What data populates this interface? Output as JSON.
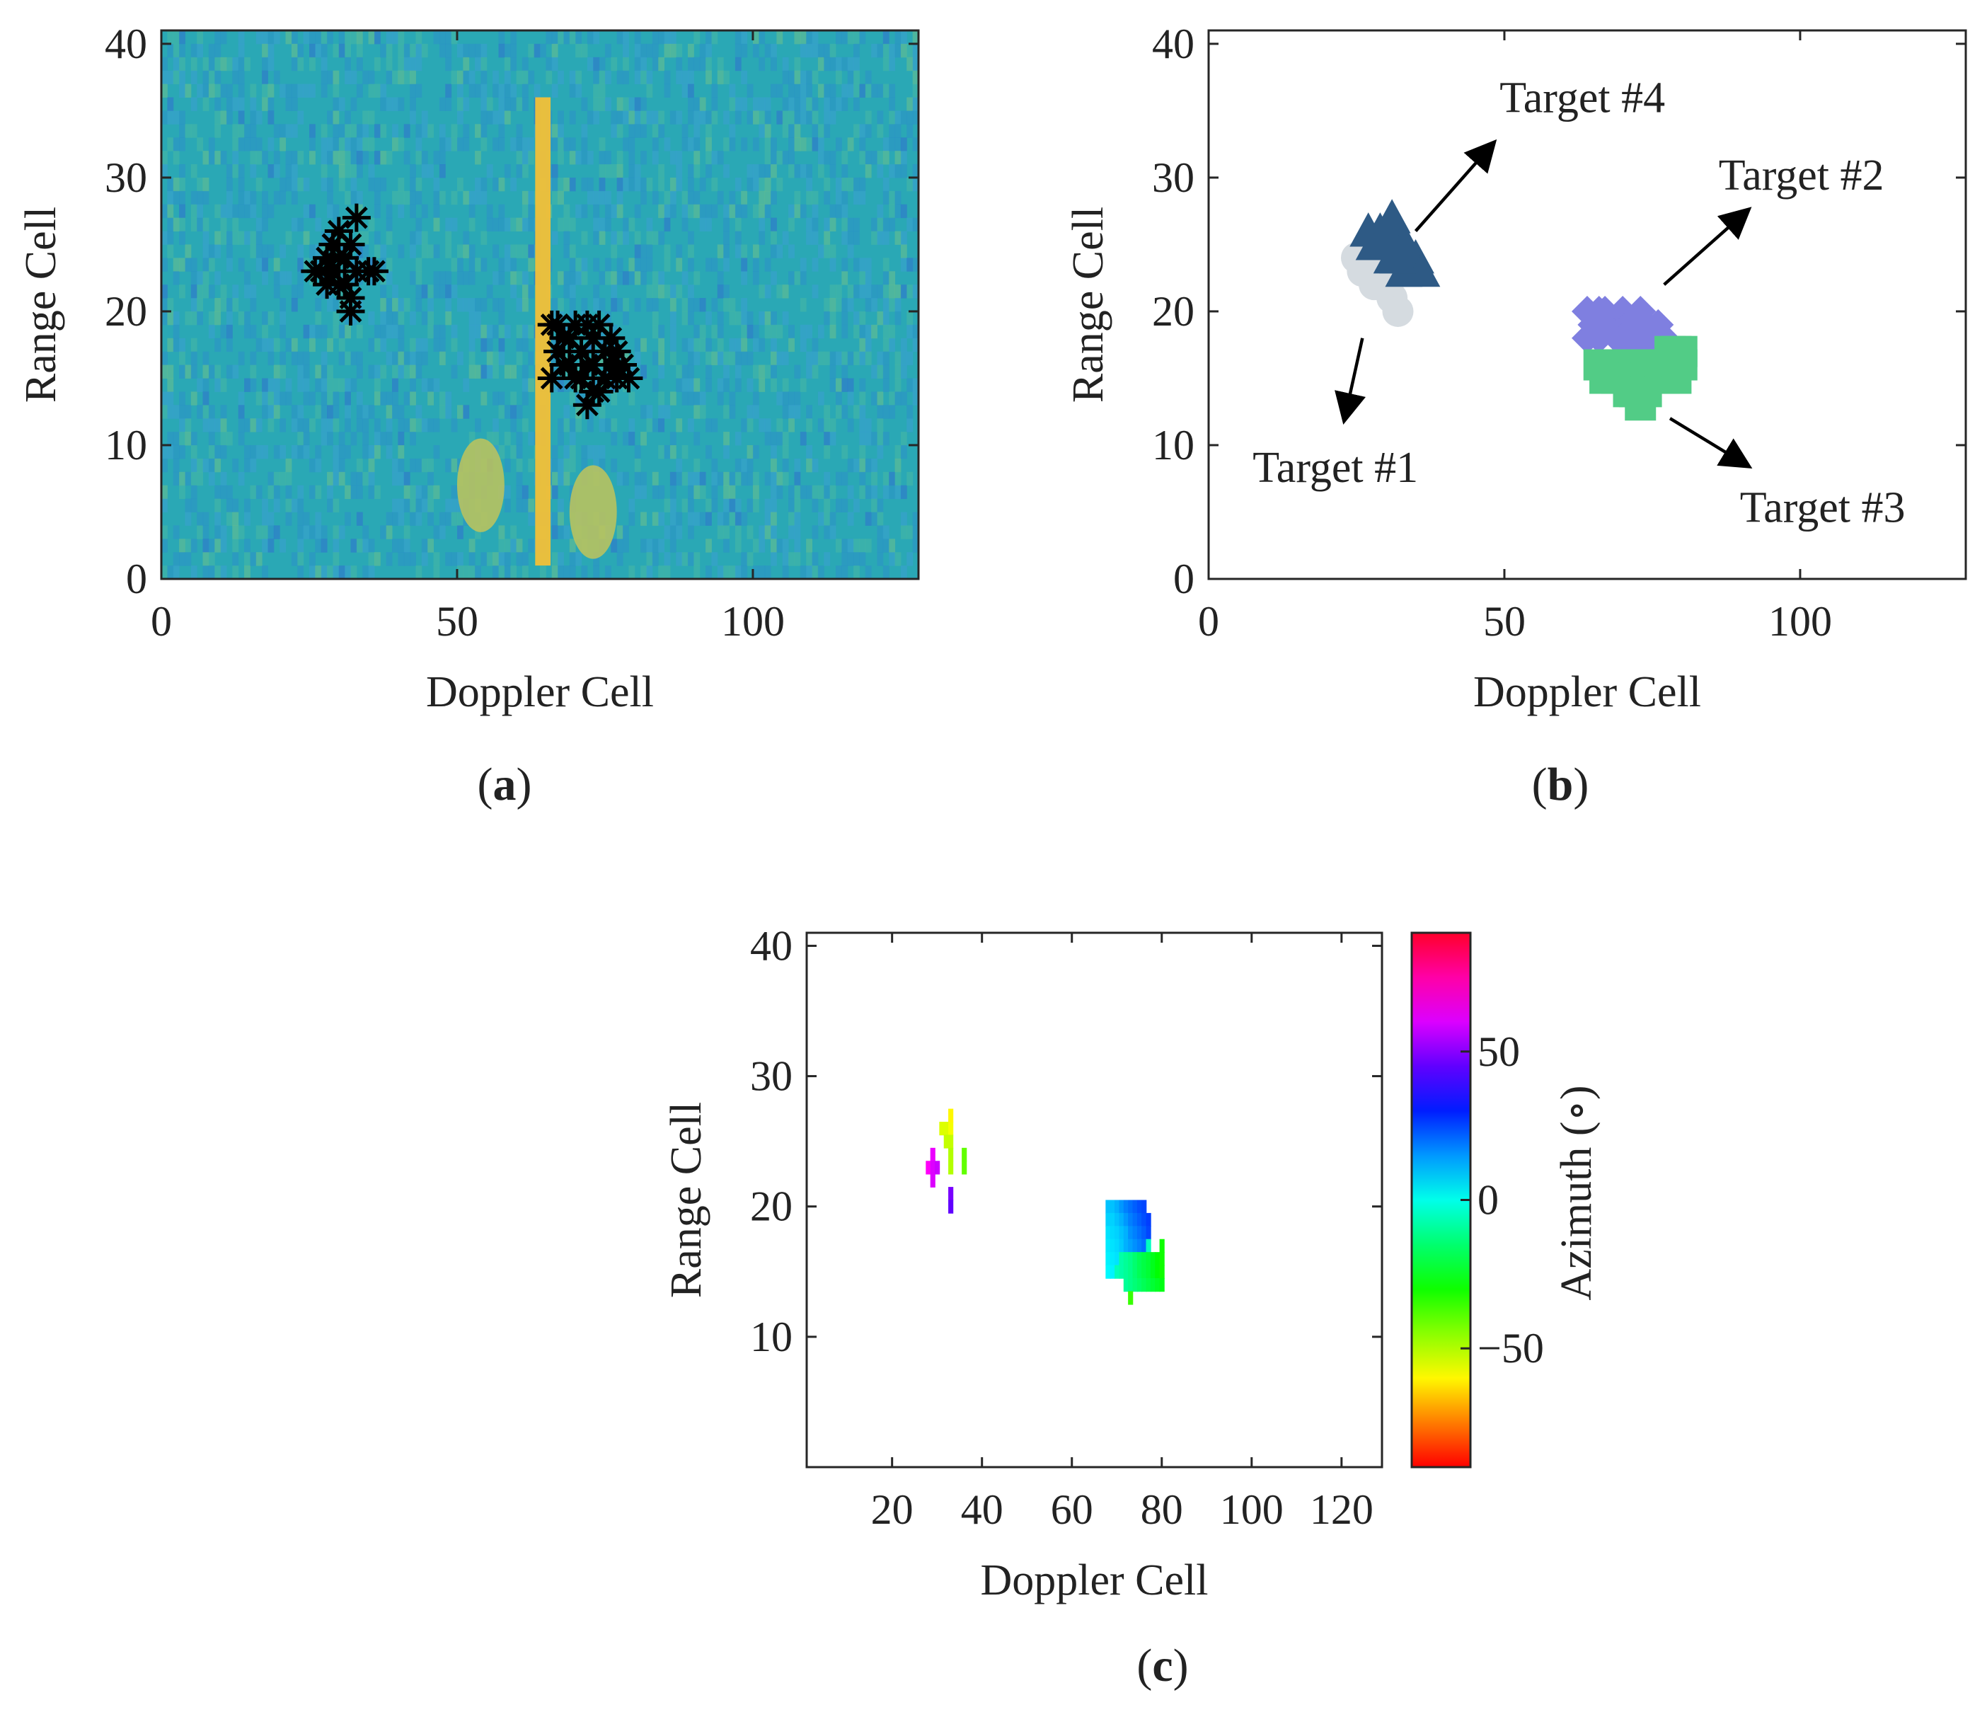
{
  "chart_data": [
    {
      "id": "a",
      "type": "heatmap",
      "caption_letter": "a",
      "xlabel": "Doppler Cell",
      "ylabel": "Range Cell",
      "xlim": [
        0,
        128
      ],
      "ylim": [
        0,
        41
      ],
      "xticks": [
        0,
        50,
        100
      ],
      "yticks": [
        0,
        10,
        20,
        30,
        40
      ],
      "background_color": "#2aa8b5",
      "stationary_line": {
        "x": 64.5,
        "y_range": [
          1,
          36
        ],
        "color": "#f2c038"
      },
      "hot_blobs": [
        {
          "x": 54,
          "y": 7,
          "color": "#bfc45a"
        },
        {
          "x": 73,
          "y": 5,
          "color": "#bfc45a"
        }
      ],
      "detections_marker": "*",
      "detections": [
        [
          27,
          23
        ],
        [
          28,
          24
        ],
        [
          29,
          25
        ],
        [
          30,
          26
        ],
        [
          31,
          24
        ],
        [
          32,
          25
        ],
        [
          33,
          27
        ],
        [
          30,
          22
        ],
        [
          28,
          22
        ],
        [
          26,
          23
        ],
        [
          29,
          23
        ],
        [
          31,
          22
        ],
        [
          32,
          21
        ],
        [
          32,
          20
        ],
        [
          35,
          23
        ],
        [
          36,
          23
        ],
        [
          33,
          23
        ],
        [
          30,
          24
        ],
        [
          66,
          19
        ],
        [
          67,
          17
        ],
        [
          66,
          15
        ],
        [
          68,
          16
        ],
        [
          69,
          18
        ],
        [
          70,
          19
        ],
        [
          71,
          17
        ],
        [
          72,
          16
        ],
        [
          73,
          18
        ],
        [
          74,
          19
        ],
        [
          75,
          17
        ],
        [
          76,
          16
        ],
        [
          77,
          15
        ],
        [
          78,
          16
        ],
        [
          79,
          15
        ],
        [
          72,
          13
        ],
        [
          73,
          14
        ],
        [
          71,
          15
        ],
        [
          74,
          14
        ],
        [
          75,
          15
        ],
        [
          70,
          15
        ],
        [
          69,
          16
        ],
        [
          68,
          18
        ],
        [
          67,
          19
        ],
        [
          76,
          18
        ],
        [
          77,
          17
        ],
        [
          73,
          16
        ],
        [
          72,
          19
        ]
      ]
    },
    {
      "id": "b",
      "type": "scatter",
      "caption_letter": "b",
      "xlabel": "Doppler Cell",
      "ylabel": "Range Cell",
      "xlim": [
        0,
        128
      ],
      "ylim": [
        0,
        41
      ],
      "xticks": [
        0,
        50,
        100
      ],
      "yticks": [
        0,
        10,
        20,
        30,
        40
      ],
      "series": [
        {
          "name": "Target #1",
          "marker": "circle",
          "color": "#d5dbe0",
          "points": [
            [
              25,
              24
            ],
            [
              26,
              23
            ],
            [
              27,
              24
            ],
            [
              28,
              22
            ],
            [
              29,
              23
            ],
            [
              30,
              22
            ],
            [
              31,
              21
            ],
            [
              32,
              20
            ],
            [
              29,
              25
            ],
            [
              31,
              23
            ]
          ]
        },
        {
          "name": "Target #4",
          "marker": "triangle",
          "color": "#2e5a85",
          "points": [
            [
              27,
              26
            ],
            [
              28,
              25
            ],
            [
              29,
              26
            ],
            [
              30,
              25
            ],
            [
              31,
              27
            ],
            [
              32,
              26
            ],
            [
              33,
              25
            ],
            [
              34,
              24
            ],
            [
              35,
              24
            ],
            [
              36,
              23
            ],
            [
              31,
              24
            ],
            [
              33,
              23
            ],
            [
              30,
              26
            ],
            [
              32,
              24
            ]
          ]
        },
        {
          "name": "Target #2",
          "marker": "diamond",
          "color": "#7f7fe0",
          "points": [
            [
              64,
              20
            ],
            [
              65,
              19
            ],
            [
              66,
              18
            ],
            [
              67,
              20
            ],
            [
              68,
              19
            ],
            [
              69,
              18
            ],
            [
              70,
              20
            ],
            [
              71,
              19
            ],
            [
              72,
              18
            ],
            [
              73,
              20
            ],
            [
              74,
              19
            ],
            [
              75,
              18
            ],
            [
              76,
              19
            ],
            [
              77,
              18
            ],
            [
              64,
              18
            ],
            [
              66,
              20
            ],
            [
              70,
              18
            ],
            [
              74,
              17
            ],
            [
              72,
              17
            ]
          ]
        },
        {
          "name": "Target #3",
          "marker": "square",
          "color": "#52cc86",
          "points": [
            [
              66,
              16
            ],
            [
              67,
              15
            ],
            [
              68,
              16
            ],
            [
              69,
              15
            ],
            [
              70,
              16
            ],
            [
              71,
              15
            ],
            [
              72,
              16
            ],
            [
              73,
              15
            ],
            [
              74,
              16
            ],
            [
              75,
              15
            ],
            [
              76,
              16
            ],
            [
              77,
              15
            ],
            [
              78,
              16
            ],
            [
              79,
              15
            ],
            [
              80,
              16
            ],
            [
              72,
              14
            ],
            [
              73,
              13
            ],
            [
              71,
              14
            ],
            [
              74,
              14
            ],
            [
              78,
              17
            ],
            [
              79,
              17
            ],
            [
              80,
              17
            ]
          ]
        }
      ],
      "annotations": [
        {
          "text": "Target #4",
          "from": [
            35,
            26
          ],
          "to": [
            48,
            32.5
          ]
        },
        {
          "text": "Target #2",
          "from": [
            77,
            22
          ],
          "to": [
            91,
            27.5
          ]
        },
        {
          "text": "Target #1",
          "from": [
            26,
            18
          ],
          "to": [
            23,
            12
          ]
        },
        {
          "text": "Target #3",
          "from": [
            78,
            12
          ],
          "to": [
            91,
            8.5
          ]
        }
      ]
    },
    {
      "id": "c",
      "type": "heatmap",
      "caption_letter": "c",
      "xlabel": "Doppler Cell",
      "ylabel": "Range Cell",
      "xlim": [
        1,
        129
      ],
      "ylim": [
        0,
        41
      ],
      "xticks": [
        20,
        40,
        60,
        80,
        100,
        120
      ],
      "yticks": [
        10,
        20,
        30,
        40
      ],
      "colorbar": {
        "label": "Azimuth (∘)",
        "range": [
          -90,
          90
        ],
        "ticks": [
          50,
          0,
          -50
        ],
        "tick_labels": [
          "50",
          "0",
          "−50"
        ],
        "colormap": "hsv"
      },
      "cells": [
        [
          31,
          26,
          -55
        ],
        [
          32,
          26,
          -55
        ],
        [
          33,
          26,
          -58
        ],
        [
          33,
          27,
          -60
        ],
        [
          32,
          25,
          -52
        ],
        [
          33,
          25,
          -52
        ],
        [
          33,
          24,
          -50
        ],
        [
          29,
          24,
          62
        ],
        [
          28,
          23,
          65
        ],
        [
          29,
          23,
          60
        ],
        [
          30,
          23,
          58
        ],
        [
          29,
          22,
          60
        ],
        [
          33,
          23,
          -50
        ],
        [
          33,
          21,
          48
        ],
        [
          33,
          20,
          45
        ],
        [
          36,
          24,
          -40
        ],
        [
          36,
          23,
          -40
        ],
        [
          68,
          20,
          10
        ],
        [
          69,
          20,
          10
        ],
        [
          70,
          20,
          12
        ],
        [
          71,
          20,
          15
        ],
        [
          72,
          20,
          18
        ],
        [
          73,
          20,
          20
        ],
        [
          74,
          20,
          22
        ],
        [
          75,
          20,
          24
        ],
        [
          76,
          20,
          25
        ],
        [
          68,
          19,
          8
        ],
        [
          69,
          19,
          8
        ],
        [
          70,
          19,
          10
        ],
        [
          71,
          19,
          12
        ],
        [
          72,
          19,
          15
        ],
        [
          73,
          19,
          18
        ],
        [
          74,
          19,
          20
        ],
        [
          75,
          19,
          22
        ],
        [
          76,
          19,
          24
        ],
        [
          77,
          19,
          26
        ],
        [
          68,
          18,
          6
        ],
        [
          69,
          18,
          7
        ],
        [
          70,
          18,
          8
        ],
        [
          71,
          18,
          10
        ],
        [
          72,
          18,
          12
        ],
        [
          73,
          18,
          16
        ],
        [
          74,
          18,
          18
        ],
        [
          75,
          18,
          20
        ],
        [
          76,
          18,
          22
        ],
        [
          77,
          18,
          25
        ],
        [
          68,
          17,
          5
        ],
        [
          69,
          17,
          6
        ],
        [
          70,
          17,
          7
        ],
        [
          71,
          17,
          9
        ],
        [
          72,
          17,
          12
        ],
        [
          73,
          17,
          14
        ],
        [
          74,
          17,
          16
        ],
        [
          75,
          17,
          18
        ],
        [
          76,
          17,
          20
        ],
        [
          77,
          17,
          -5
        ],
        [
          80,
          17,
          -30
        ],
        [
          68,
          16,
          4
        ],
        [
          69,
          16,
          5
        ],
        [
          70,
          16,
          6
        ],
        [
          71,
          16,
          -8
        ],
        [
          72,
          16,
          -10
        ],
        [
          73,
          16,
          -12
        ],
        [
          74,
          16,
          -15
        ],
        [
          75,
          16,
          -18
        ],
        [
          76,
          16,
          -20
        ],
        [
          77,
          16,
          -22
        ],
        [
          78,
          16,
          -25
        ],
        [
          79,
          16,
          -28
        ],
        [
          80,
          16,
          -30
        ],
        [
          68,
          15,
          3
        ],
        [
          69,
          15,
          4
        ],
        [
          70,
          15,
          -6
        ],
        [
          71,
          15,
          -8
        ],
        [
          72,
          15,
          -10
        ],
        [
          73,
          15,
          -12
        ],
        [
          74,
          15,
          -15
        ],
        [
          75,
          15,
          -18
        ],
        [
          76,
          15,
          -20
        ],
        [
          77,
          15,
          -22
        ],
        [
          78,
          15,
          -25
        ],
        [
          79,
          15,
          -28
        ],
        [
          80,
          15,
          -30
        ],
        [
          72,
          14,
          -10
        ],
        [
          73,
          14,
          -12
        ],
        [
          74,
          14,
          -14
        ],
        [
          75,
          14,
          -16
        ],
        [
          76,
          14,
          -18
        ],
        [
          77,
          14,
          -20
        ],
        [
          78,
          14,
          -22
        ],
        [
          79,
          14,
          -24
        ],
        [
          80,
          14,
          -26
        ],
        [
          73,
          13,
          -35
        ]
      ]
    }
  ]
}
